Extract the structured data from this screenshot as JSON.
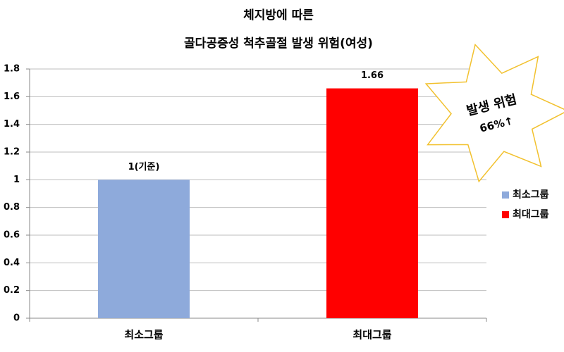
{
  "chart_data": {
    "type": "bar",
    "title": [
      "체지방에 따른",
      "골다공증성 척추골절 발생 위험(여성)"
    ],
    "categories": [
      "최소그룹",
      "최대그룹"
    ],
    "values": [
      1,
      1.66
    ],
    "value_labels": [
      "1(기준)",
      "1.66"
    ],
    "colors": [
      "#8eaadb",
      "#ff0000"
    ],
    "ylim": [
      0,
      1.8
    ],
    "yticks": [
      0,
      0.2,
      0.4,
      0.6,
      0.8,
      1,
      1.2,
      1.4,
      1.6,
      1.8
    ],
    "grid": true,
    "legend": "right",
    "annotation": [
      "발생 위험",
      "66%↑"
    ]
  }
}
